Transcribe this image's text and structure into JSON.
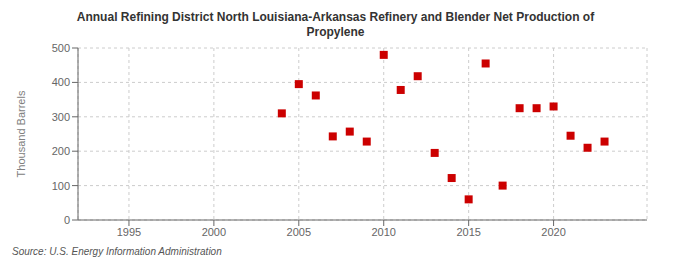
{
  "chart_data": {
    "type": "scatter",
    "title": "Annual Refining District North Louisiana-Arkansas Refinery and Blender Net Production of\nPropylene",
    "ylabel": "Thousand Barrels",
    "annotations": [
      "Source: U.S. Energy Information Administration"
    ],
    "x": [
      2004,
      2005,
      2006,
      2007,
      2008,
      2009,
      2010,
      2011,
      2012,
      2013,
      2014,
      2015,
      2016,
      2017,
      2018,
      2019,
      2020,
      2021,
      2022,
      2023
    ],
    "values": [
      310,
      395,
      362,
      243,
      257,
      228,
      480,
      378,
      418,
      195,
      122,
      60,
      455,
      100,
      325,
      325,
      330,
      245,
      210,
      228
    ],
    "color": "#cc0000",
    "marker": "square",
    "xlim": [
      1992,
      2025.5
    ],
    "xticks": [
      1995,
      2000,
      2005,
      2010,
      2015,
      2020
    ],
    "ylim": [
      0,
      500
    ],
    "yticks": [
      0,
      100,
      200,
      300,
      400,
      500
    ],
    "grid": true
  }
}
